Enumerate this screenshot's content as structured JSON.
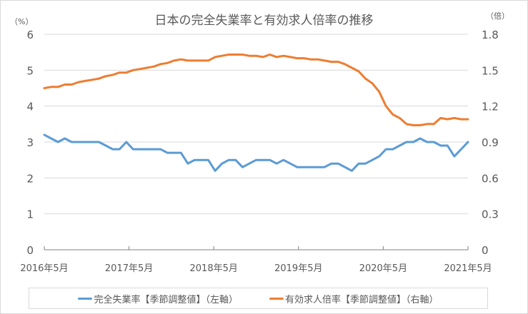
{
  "chart_data": {
    "type": "line",
    "title": "日本の完全失業率と有効求人倍率の推移",
    "left_axis": {
      "label": "（%）",
      "ylim": [
        0,
        6
      ],
      "ticks": [
        0,
        1,
        2,
        3,
        4,
        5,
        6
      ]
    },
    "right_axis": {
      "label": "（倍）",
      "ylim": [
        0,
        1.8
      ],
      "ticks": [
        "0",
        "0.3",
        "0.6",
        "0.9",
        "1.2",
        "1.5",
        "1.8"
      ]
    },
    "x_tick_labels": [
      "2016年5月",
      "2017年5月",
      "2018年5月",
      "2019年5月",
      "2020年5月",
      "2021年5月"
    ],
    "x_start": "2016年5月",
    "x_end": "2021年5月",
    "grid": true,
    "legend_position": "bottom",
    "series": [
      {
        "name": "完全失業率【季節調整値】（左軸）",
        "axis": "left",
        "color": "#5b9bd5",
        "values": [
          3.2,
          3.1,
          3.0,
          3.1,
          3.0,
          3.0,
          3.0,
          3.0,
          3.0,
          2.9,
          2.8,
          2.8,
          3.0,
          2.8,
          2.8,
          2.8,
          2.8,
          2.8,
          2.7,
          2.7,
          2.7,
          2.4,
          2.5,
          2.5,
          2.5,
          2.2,
          2.4,
          2.5,
          2.5,
          2.3,
          2.4,
          2.5,
          2.5,
          2.5,
          2.4,
          2.5,
          2.4,
          2.3,
          2.3,
          2.3,
          2.3,
          2.3,
          2.4,
          2.4,
          2.3,
          2.2,
          2.4,
          2.4,
          2.5,
          2.6,
          2.8,
          2.8,
          2.9,
          3.0,
          3.0,
          3.1,
          3.0,
          3.0,
          2.9,
          2.9,
          2.6,
          2.8,
          3.0
        ]
      },
      {
        "name": "有効求人倍率【季節調整値】（右軸）",
        "axis": "right",
        "color": "#ed7d31",
        "values": [
          1.35,
          1.36,
          1.36,
          1.38,
          1.38,
          1.4,
          1.41,
          1.42,
          1.43,
          1.45,
          1.46,
          1.48,
          1.48,
          1.5,
          1.51,
          1.52,
          1.53,
          1.55,
          1.56,
          1.58,
          1.59,
          1.58,
          1.58,
          1.58,
          1.58,
          1.61,
          1.62,
          1.63,
          1.63,
          1.63,
          1.62,
          1.62,
          1.61,
          1.63,
          1.61,
          1.62,
          1.61,
          1.6,
          1.6,
          1.59,
          1.59,
          1.58,
          1.57,
          1.57,
          1.55,
          1.52,
          1.49,
          1.43,
          1.39,
          1.32,
          1.2,
          1.13,
          1.1,
          1.05,
          1.04,
          1.04,
          1.05,
          1.05,
          1.1,
          1.09,
          1.1,
          1.09,
          1.09
        ]
      }
    ]
  },
  "legend": {
    "items": [
      {
        "label": "完全失業率【季節調整値】（左軸）",
        "color": "#5b9bd5"
      },
      {
        "label": "有効求人倍率【季節調整値】（右軸）",
        "color": "#ed7d31"
      }
    ]
  }
}
